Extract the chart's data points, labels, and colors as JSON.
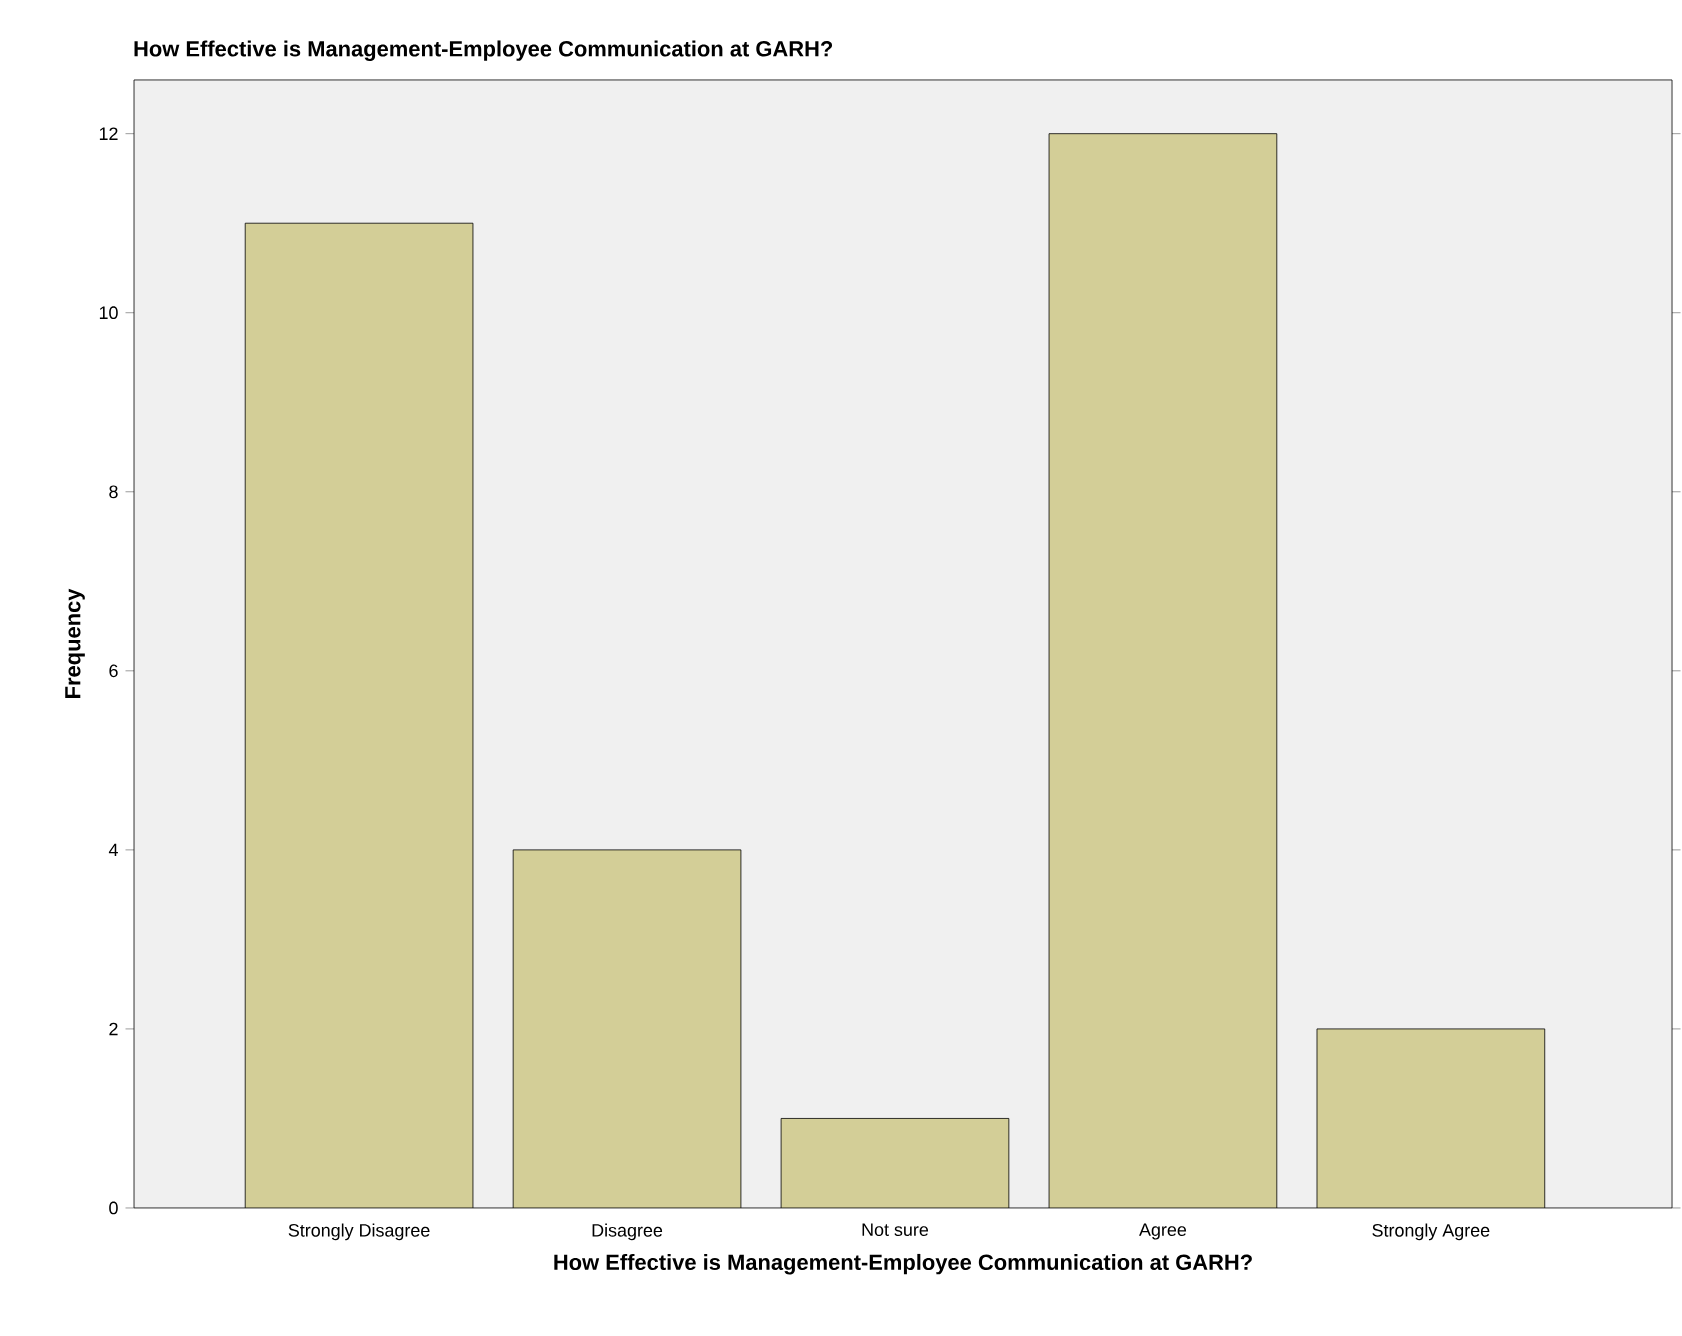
{
  "chart_data": {
    "type": "bar",
    "title": "How Effective is Management-Employee Communication at GARH?",
    "xlabel": "How Effective is Management-Employee Communication at GARH?",
    "ylabel": "Frequency",
    "categories": [
      "Strongly Disagree",
      "Disagree",
      "Not sure",
      "Agree",
      "Strongly Agree"
    ],
    "values": [
      11,
      4,
      1,
      12,
      2
    ],
    "color": "#d3ce97",
    "ylim": [
      0,
      12.6
    ],
    "yticks": [
      0,
      2,
      4,
      6,
      8,
      10,
      12
    ],
    "grid": false
  }
}
